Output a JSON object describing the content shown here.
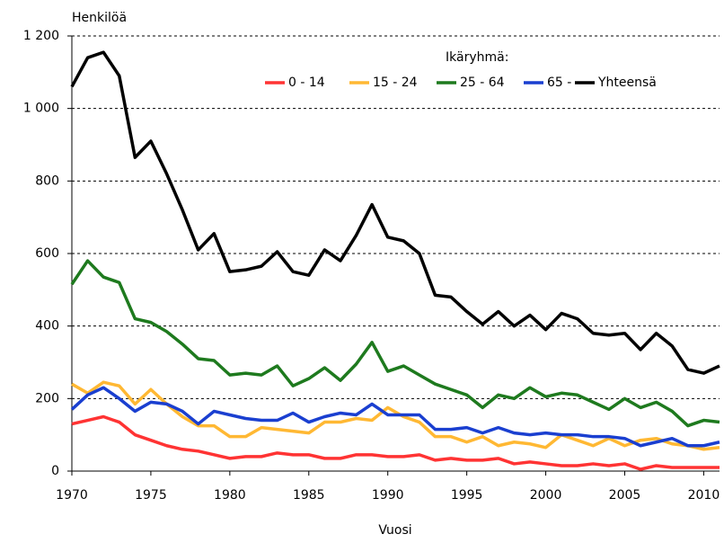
{
  "chart_data": {
    "type": "line",
    "y_label": "Henkilöä",
    "x_label": "Vuosi",
    "legend_title": "Ikäryhmä:",
    "x": [
      1970,
      1971,
      1972,
      1973,
      1974,
      1975,
      1976,
      1977,
      1978,
      1979,
      1980,
      1981,
      1982,
      1983,
      1984,
      1985,
      1986,
      1987,
      1988,
      1989,
      1990,
      1991,
      1992,
      1993,
      1994,
      1995,
      1996,
      1997,
      1998,
      1999,
      2000,
      2001,
      2002,
      2003,
      2004,
      2005,
      2006,
      2007,
      2008,
      2009,
      2010,
      2011
    ],
    "series": [
      {
        "name": "0 - 14",
        "color": "#ff3333",
        "values": [
          130,
          140,
          150,
          135,
          100,
          85,
          70,
          60,
          55,
          45,
          35,
          40,
          40,
          50,
          45,
          45,
          35,
          35,
          45,
          45,
          40,
          40,
          45,
          30,
          35,
          30,
          30,
          35,
          20,
          25,
          20,
          15,
          15,
          20,
          15,
          20,
          5,
          15,
          10,
          10,
          10,
          10
        ]
      },
      {
        "name": "15 - 24",
        "color": "#ffb833",
        "values": [
          240,
          215,
          245,
          235,
          185,
          225,
          185,
          150,
          125,
          125,
          95,
          95,
          120,
          115,
          110,
          105,
          135,
          135,
          145,
          140,
          175,
          150,
          135,
          95,
          95,
          80,
          95,
          70,
          80,
          75,
          65,
          100,
          85,
          70,
          90,
          70,
          85,
          90,
          75,
          70,
          60,
          65
        ]
      },
      {
        "name": "25 - 64",
        "color": "#1e7a1e",
        "values": [
          515,
          580,
          535,
          520,
          420,
          410,
          385,
          350,
          310,
          305,
          265,
          270,
          265,
          290,
          235,
          255,
          285,
          250,
          295,
          355,
          275,
          290,
          265,
          240,
          225,
          210,
          175,
          210,
          200,
          230,
          205,
          215,
          210,
          190,
          170,
          200,
          175,
          190,
          165,
          125,
          140,
          135
        ]
      },
      {
        "name": "65 -",
        "color": "#1a3fd0",
        "values": [
          170,
          210,
          230,
          200,
          165,
          190,
          185,
          165,
          130,
          165,
          155,
          145,
          140,
          140,
          160,
          135,
          150,
          160,
          155,
          185,
          155,
          155,
          155,
          115,
          115,
          120,
          105,
          120,
          105,
          100,
          105,
          100,
          100,
          95,
          95,
          90,
          70,
          80,
          90,
          70,
          70,
          80
        ]
      },
      {
        "name": "Yhteensä",
        "color": "#000000",
        "values": [
          1060,
          1140,
          1155,
          1090,
          865,
          910,
          820,
          720,
          610,
          655,
          550,
          555,
          565,
          605,
          550,
          540,
          610,
          580,
          650,
          735,
          645,
          635,
          600,
          485,
          480,
          440,
          405,
          440,
          400,
          430,
          390,
          435,
          420,
          380,
          375,
          380,
          335,
          380,
          345,
          280,
          270,
          290
        ]
      }
    ],
    "xlim": [
      1970,
      2011
    ],
    "xticks": [
      1970,
      1975,
      1980,
      1985,
      1990,
      1995,
      2000,
      2005,
      2010
    ],
    "ylim": [
      0,
      1200
    ],
    "yticks": [
      0,
      200,
      400,
      600,
      800,
      {
        "value": 1000,
        "label": "1 000"
      },
      {
        "value": 1200,
        "label": "1 200"
      }
    ],
    "grid": true
  }
}
